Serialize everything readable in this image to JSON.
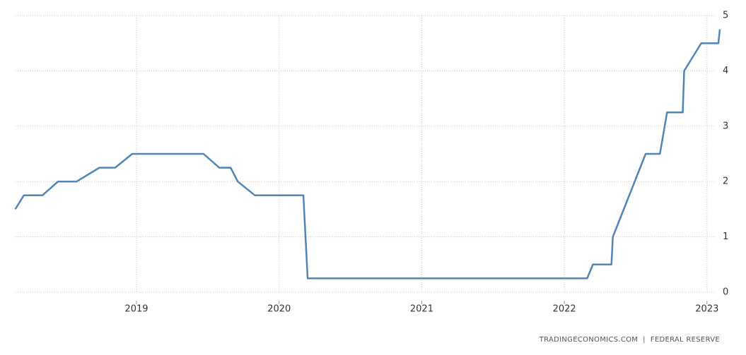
{
  "chart_data": {
    "type": "line",
    "x": [
      2018.15,
      2018.21,
      2018.34,
      2018.45,
      2018.58,
      2018.74,
      2018.85,
      2018.97,
      2019.47,
      2019.58,
      2019.66,
      2019.71,
      2019.83,
      2020.17,
      2020.18,
      2020.2,
      2022.16,
      2022.2,
      2022.33,
      2022.34,
      2022.57,
      2022.67,
      2022.72,
      2022.83,
      2022.84,
      2022.96,
      2023.08,
      2023.09
    ],
    "series": [
      {
        "color": "#4f86b8",
        "values": [
          1.5,
          1.75,
          1.75,
          2.0,
          2.0,
          2.25,
          2.25,
          2.5,
          2.5,
          2.25,
          2.25,
          2.0,
          1.75,
          1.75,
          1.25,
          0.25,
          0.25,
          0.5,
          0.5,
          1.0,
          2.5,
          2.5,
          3.25,
          3.25,
          4.0,
          4.5,
          4.5,
          4.75
        ]
      }
    ],
    "xlim": [
      2018.152,
      2023.1
    ],
    "xticks": [
      2019,
      2020,
      2021,
      2022,
      2023
    ],
    "ylim": [
      0,
      5
    ],
    "yticks": [
      0,
      1,
      2,
      3,
      4,
      5
    ],
    "grid": true,
    "source": "TRADINGECONOMICS.COM  |  FEDERAL RESERVE"
  }
}
